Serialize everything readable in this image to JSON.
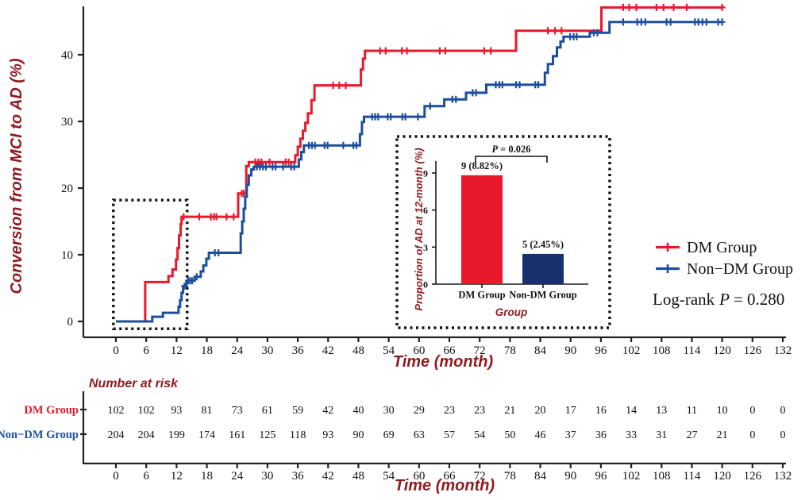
{
  "figure": {
    "logrank": {
      "prefix": "Log-rank",
      "italic": "P",
      "rest": "= 0.280"
    }
  },
  "chart_data": [
    {
      "type": "km_step",
      "title": "",
      "xlabel": "Time  (month)",
      "ylabel": "Conversion from MCI to AD (%)",
      "xlim": [
        0,
        132
      ],
      "ylim": [
        0,
        47
      ],
      "x_ticks": [
        0,
        6,
        12,
        18,
        24,
        30,
        36,
        42,
        48,
        54,
        60,
        66,
        72,
        78,
        84,
        90,
        96,
        102,
        108,
        114,
        120,
        126,
        132
      ],
      "y_ticks": [
        0,
        10,
        20,
        30,
        40
      ],
      "grid": false,
      "legend_position": "right",
      "highlight_box": {
        "x0": -0.5,
        "x1": 14.1,
        "y0": -1.1,
        "y1": 18.2
      },
      "series": [
        {
          "name": "DM Group",
          "color": "#e8192b",
          "end": 120,
          "steps": [
            [
              0,
              0
            ],
            [
              5.8,
              5.9
            ],
            [
              10.4,
              6.8
            ],
            [
              11.2,
              7.8
            ],
            [
              11.9,
              9.3
            ],
            [
              12.2,
              11.0
            ],
            [
              12.5,
              12.9
            ],
            [
              12.8,
              14.6
            ],
            [
              13.0,
              15.7
            ],
            [
              24.2,
              19.2
            ],
            [
              25.8,
              23.3
            ],
            [
              26.3,
              23.9
            ],
            [
              35.5,
              24.9
            ],
            [
              36.0,
              26.2
            ],
            [
              36.5,
              27.4
            ],
            [
              37.0,
              28.6
            ],
            [
              37.5,
              29.8
            ],
            [
              38.0,
              31.2
            ],
            [
              38.7,
              33.2
            ],
            [
              39.3,
              35.4
            ],
            [
              48.5,
              37.8
            ],
            [
              48.9,
              39.4
            ],
            [
              49.3,
              40.6
            ],
            [
              79.2,
              43.6
            ],
            [
              96.1,
              47.1
            ]
          ],
          "censors": [
            [
              13.4,
              15.7
            ],
            [
              16.5,
              15.7
            ],
            [
              18.8,
              15.7
            ],
            [
              19.4,
              15.7
            ],
            [
              19.9,
              15.7
            ],
            [
              21.9,
              15.7
            ],
            [
              23.3,
              15.7
            ],
            [
              24.9,
              19.2
            ],
            [
              25.3,
              19.2
            ],
            [
              27.6,
              23.9
            ],
            [
              28.2,
              23.9
            ],
            [
              28.8,
              23.9
            ],
            [
              30.4,
              23.9
            ],
            [
              33.6,
              23.9
            ],
            [
              34.2,
              23.9
            ],
            [
              43.0,
              35.4
            ],
            [
              44.2,
              35.4
            ],
            [
              45.5,
              35.4
            ],
            [
              52.3,
              40.6
            ],
            [
              53.4,
              40.6
            ],
            [
              56.6,
              40.6
            ],
            [
              57.6,
              40.6
            ],
            [
              64.1,
              40.6
            ],
            [
              65.2,
              40.6
            ],
            [
              72.9,
              40.6
            ],
            [
              74.2,
              40.6
            ],
            [
              85.5,
              43.6
            ],
            [
              86.9,
              43.6
            ],
            [
              88.2,
              43.6
            ],
            [
              100.4,
              47.1
            ],
            [
              101.6,
              47.1
            ],
            [
              103.0,
              47.1
            ],
            [
              107.0,
              47.1
            ],
            [
              108.4,
              47.1
            ],
            [
              110.4,
              47.1
            ],
            [
              113.0,
              47.1
            ],
            [
              120,
              47.1
            ]
          ]
        },
        {
          "name": "Non−DM Group",
          "color": "#1d4e9e",
          "end": 120,
          "steps": [
            [
              0,
              0
            ],
            [
              7.2,
              0.7
            ],
            [
              9.3,
              1.3
            ],
            [
              12.4,
              2.2
            ],
            [
              12.7,
              3.2
            ],
            [
              13.0,
              4.3
            ],
            [
              13.3,
              5.3
            ],
            [
              14.0,
              6.1
            ],
            [
              15.6,
              6.7
            ],
            [
              16.8,
              7.5
            ],
            [
              17.3,
              8.4
            ],
            [
              17.9,
              9.4
            ],
            [
              18.4,
              10.3
            ],
            [
              24.7,
              13.2
            ],
            [
              25.0,
              15.0
            ],
            [
              25.3,
              16.9
            ],
            [
              25.6,
              18.7
            ],
            [
              25.9,
              20.5
            ],
            [
              26.3,
              21.9
            ],
            [
              26.8,
              22.8
            ],
            [
              27.3,
              23.2
            ],
            [
              36.2,
              24.3
            ],
            [
              36.7,
              25.4
            ],
            [
              37.2,
              26.4
            ],
            [
              48.3,
              28.1
            ],
            [
              48.7,
              29.9
            ],
            [
              49.1,
              30.7
            ],
            [
              61.1,
              32.3
            ],
            [
              65.0,
              33.3
            ],
            [
              69.3,
              34.3
            ],
            [
              73.3,
              35.5
            ],
            [
              84.9,
              37.3
            ],
            [
              85.5,
              38.6
            ],
            [
              86.5,
              39.8
            ],
            [
              87.3,
              41.1
            ],
            [
              88.0,
              42.0
            ],
            [
              88.6,
              42.7
            ],
            [
              93.8,
              43.3
            ],
            [
              97.7,
              44.9
            ]
          ],
          "censors": [
            [
              13.6,
              5.3
            ],
            [
              14.3,
              6.1
            ],
            [
              14.7,
              6.1
            ],
            [
              15.1,
              6.1
            ],
            [
              16.0,
              6.7
            ],
            [
              19.6,
              10.3
            ],
            [
              20.3,
              10.3
            ],
            [
              27.9,
              23.2
            ],
            [
              28.5,
              23.2
            ],
            [
              29.1,
              23.2
            ],
            [
              29.7,
              23.2
            ],
            [
              31.0,
              23.2
            ],
            [
              31.6,
              23.2
            ],
            [
              33.1,
              23.2
            ],
            [
              34.7,
              23.2
            ],
            [
              35.3,
              23.2
            ],
            [
              38.2,
              26.4
            ],
            [
              38.8,
              26.4
            ],
            [
              39.4,
              26.4
            ],
            [
              41.3,
              26.4
            ],
            [
              41.9,
              26.4
            ],
            [
              45.0,
              26.4
            ],
            [
              47.0,
              26.4
            ],
            [
              47.6,
              26.4
            ],
            [
              50.7,
              30.7
            ],
            [
              51.3,
              30.7
            ],
            [
              51.9,
              30.7
            ],
            [
              53.8,
              30.7
            ],
            [
              54.4,
              30.7
            ],
            [
              56.7,
              30.7
            ],
            [
              57.3,
              30.7
            ],
            [
              59.8,
              30.7
            ],
            [
              62.2,
              32.3
            ],
            [
              66.6,
              33.3
            ],
            [
              67.3,
              33.3
            ],
            [
              70.6,
              34.3
            ],
            [
              71.3,
              34.3
            ],
            [
              75.2,
              35.5
            ],
            [
              75.9,
              35.5
            ],
            [
              76.5,
              35.5
            ],
            [
              79.2,
              35.5
            ],
            [
              79.9,
              35.5
            ],
            [
              83.0,
              35.5
            ],
            [
              83.6,
              35.5
            ],
            [
              89.9,
              42.7
            ],
            [
              90.6,
              42.7
            ],
            [
              91.2,
              42.7
            ],
            [
              94.6,
              43.3
            ],
            [
              95.3,
              43.3
            ],
            [
              100.4,
              44.9
            ],
            [
              103.2,
              44.9
            ],
            [
              104.0,
              44.9
            ],
            [
              104.8,
              44.9
            ],
            [
              109.0,
              44.9
            ],
            [
              109.8,
              44.9
            ],
            [
              114.6,
              44.9
            ],
            [
              115.3,
              44.9
            ],
            [
              116.1,
              44.9
            ],
            [
              116.9,
              44.9
            ],
            [
              119.2,
              44.9
            ],
            [
              120,
              44.9
            ]
          ]
        }
      ]
    },
    {
      "type": "bar",
      "title": "",
      "xlabel": "Group",
      "ylabel": "Proportion of AD at 12-month (%)",
      "categories": [
        "DM Group",
        "Non-DM Group"
      ],
      "values": [
        8.82,
        2.45
      ],
      "bar_labels": [
        "9 (8.82%)",
        "5 (2.45%)"
      ],
      "colors": [
        "#e8192b",
        "#17316f"
      ],
      "y_ticks": [
        0,
        3,
        6,
        9
      ],
      "ylim": [
        0,
        10
      ],
      "grid": false,
      "p_annotation": {
        "italic": "P",
        "rest": "= 0.026"
      }
    }
  ],
  "risk_table": {
    "title": "Number at risk",
    "xlabel": "Time  (month)",
    "months": [
      0,
      6,
      12,
      18,
      24,
      30,
      36,
      42,
      48,
      54,
      60,
      66,
      72,
      78,
      84,
      90,
      96,
      102,
      108,
      114,
      120,
      126,
      132
    ],
    "rows": [
      {
        "label": "DM Group",
        "color": "#e8192b",
        "values": [
          102,
          102,
          93,
          81,
          73,
          61,
          59,
          42,
          40,
          30,
          29,
          23,
          23,
          21,
          20,
          17,
          16,
          14,
          13,
          11,
          10,
          0,
          0
        ]
      },
      {
        "label": "Non−DM Group",
        "color": "#1d4fa5",
        "values": [
          204,
          204,
          199,
          174,
          161,
          125,
          118,
          93,
          90,
          69,
          63,
          57,
          54,
          50,
          46,
          37,
          36,
          33,
          31,
          27,
          21,
          0,
          0
        ]
      }
    ]
  }
}
